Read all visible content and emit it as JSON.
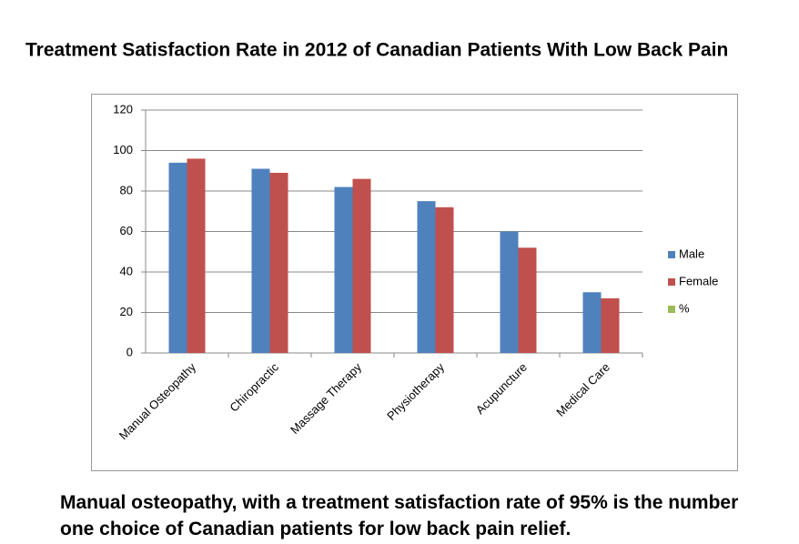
{
  "chart_data": {
    "type": "bar",
    "title": "Treatment Satisfaction Rate in 2012 of Canadian Patients With Low Back Pain",
    "categories": [
      "Manual Osteopathy",
      "Chiropractic",
      "Massage Therapy",
      "Physiotherapy",
      "Acupuncture",
      "Medical Care"
    ],
    "series": [
      {
        "name": "Male",
        "color": "#4f81bd",
        "values": [
          94,
          91,
          82,
          75,
          60,
          30
        ]
      },
      {
        "name": "Female",
        "color": "#c0504d",
        "values": [
          96,
          89,
          86,
          72,
          52,
          27
        ]
      },
      {
        "name": "%",
        "color": "#9bbb59",
        "values": [
          null,
          null,
          null,
          null,
          null,
          null
        ]
      }
    ],
    "ylim": [
      0,
      120
    ],
    "yticks": [
      0,
      20,
      40,
      60,
      80,
      100,
      120
    ],
    "grid": true,
    "legend": "right",
    "caption": "Manual osteopathy, with a treatment satisfaction rate of 95% is the number\none choice of Canadian patients for low back pain relief."
  }
}
